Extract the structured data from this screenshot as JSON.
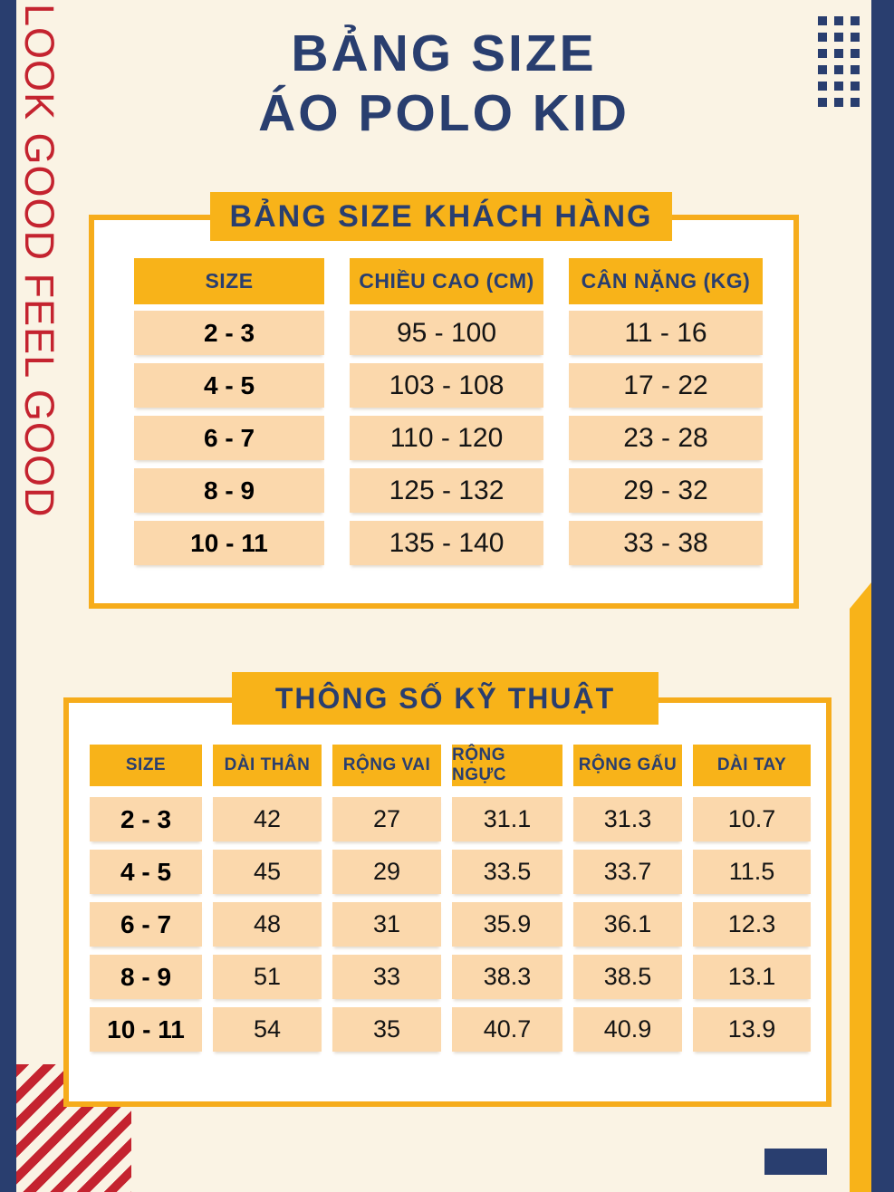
{
  "page": {
    "title_line1": "BẢNG SIZE",
    "title_line2": "ÁO POLO KID",
    "side_text": "LOOK GOOD FEEL GOOD"
  },
  "colors": {
    "navy": "#293E6F",
    "red": "#C4232F",
    "yellow": "#F8B319",
    "peach": "#FBD8AC",
    "cream": "#FAF3E4"
  },
  "customer_size_table": {
    "banner": "BẢNG SIZE KHÁCH HÀNG",
    "columns": [
      "SIZE",
      "CHIỀU CAO (CM)",
      "CÂN NẶNG (KG)"
    ],
    "rows": [
      [
        "2 - 3",
        "95 - 100",
        "11 - 16"
      ],
      [
        "4 - 5",
        "103 - 108",
        "17 - 22"
      ],
      [
        "6 - 7",
        "110 - 120",
        "23 - 28"
      ],
      [
        "8 - 9",
        "125 - 132",
        "29 - 32"
      ],
      [
        "10 - 11",
        "135 - 140",
        "33 - 38"
      ]
    ]
  },
  "spec_table": {
    "banner": "THÔNG SỐ KỸ THUẬT",
    "columns": [
      "SIZE",
      "DÀI THÂN",
      "RỘNG VAI",
      "RỘNG NGỰC",
      "RỘNG GẤU",
      "DÀI TAY"
    ],
    "rows": [
      [
        "2 - 3",
        "42",
        "27",
        "31.1",
        "31.3",
        "10.7"
      ],
      [
        "4 - 5",
        "45",
        "29",
        "33.5",
        "33.7",
        "11.5"
      ],
      [
        "6 - 7",
        "48",
        "31",
        "35.9",
        "36.1",
        "12.3"
      ],
      [
        "8 - 9",
        "51",
        "33",
        "38.3",
        "38.5",
        "13.1"
      ],
      [
        "10 - 11",
        "54",
        "35",
        "40.7",
        "40.9",
        "13.9"
      ]
    ]
  }
}
